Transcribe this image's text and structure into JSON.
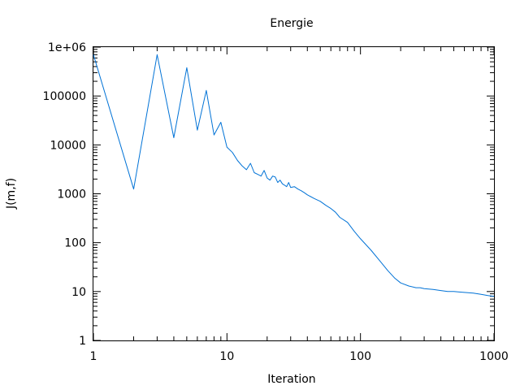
{
  "chart_data": {
    "type": "line",
    "title": "Energie",
    "xlabel": "Iteration",
    "ylabel": "J(m,f)",
    "x_scale": "log",
    "y_scale": "log",
    "xlim": [
      1,
      1000
    ],
    "ylim": [
      1,
      1000000
    ],
    "x_ticks": [
      "1",
      "10",
      "100",
      "1000"
    ],
    "y_ticks": [
      "1",
      "10",
      "100",
      "1000",
      "10000",
      "100000",
      "1e+06"
    ],
    "grid": false,
    "legend": "none",
    "line_color": "#0072d6",
    "series": [
      {
        "x": [
          1,
          2,
          3,
          4,
          5,
          6,
          7,
          8,
          9,
          10,
          11,
          12,
          13,
          14,
          15,
          16,
          17,
          18,
          19,
          20,
          21,
          22,
          23,
          24,
          25,
          26,
          27,
          28,
          29,
          30,
          32,
          34,
          36,
          38,
          40,
          45,
          50,
          55,
          60,
          65,
          70,
          80,
          90,
          100,
          120,
          140,
          160,
          180,
          200,
          230,
          260,
          280,
          300,
          350,
          400,
          450,
          500,
          550,
          600,
          700,
          800,
          900,
          1000
        ],
        "y": [
          700000,
          1250,
          700000,
          14000,
          380000,
          20000,
          130000,
          16000,
          29000,
          9000,
          7000,
          4800,
          3700,
          3100,
          4200,
          2700,
          2500,
          2300,
          3000,
          2100,
          1900,
          2300,
          2200,
          1700,
          1900,
          1600,
          1500,
          1400,
          1700,
          1350,
          1400,
          1250,
          1150,
          1050,
          950,
          800,
          700,
          580,
          500,
          420,
          330,
          260,
          170,
          120,
          70,
          42,
          27,
          19,
          15,
          13,
          12,
          12,
          11.5,
          11,
          10.5,
          10,
          10,
          9.8,
          9.6,
          9.3,
          8.8,
          8.3,
          8
        ]
      }
    ]
  }
}
